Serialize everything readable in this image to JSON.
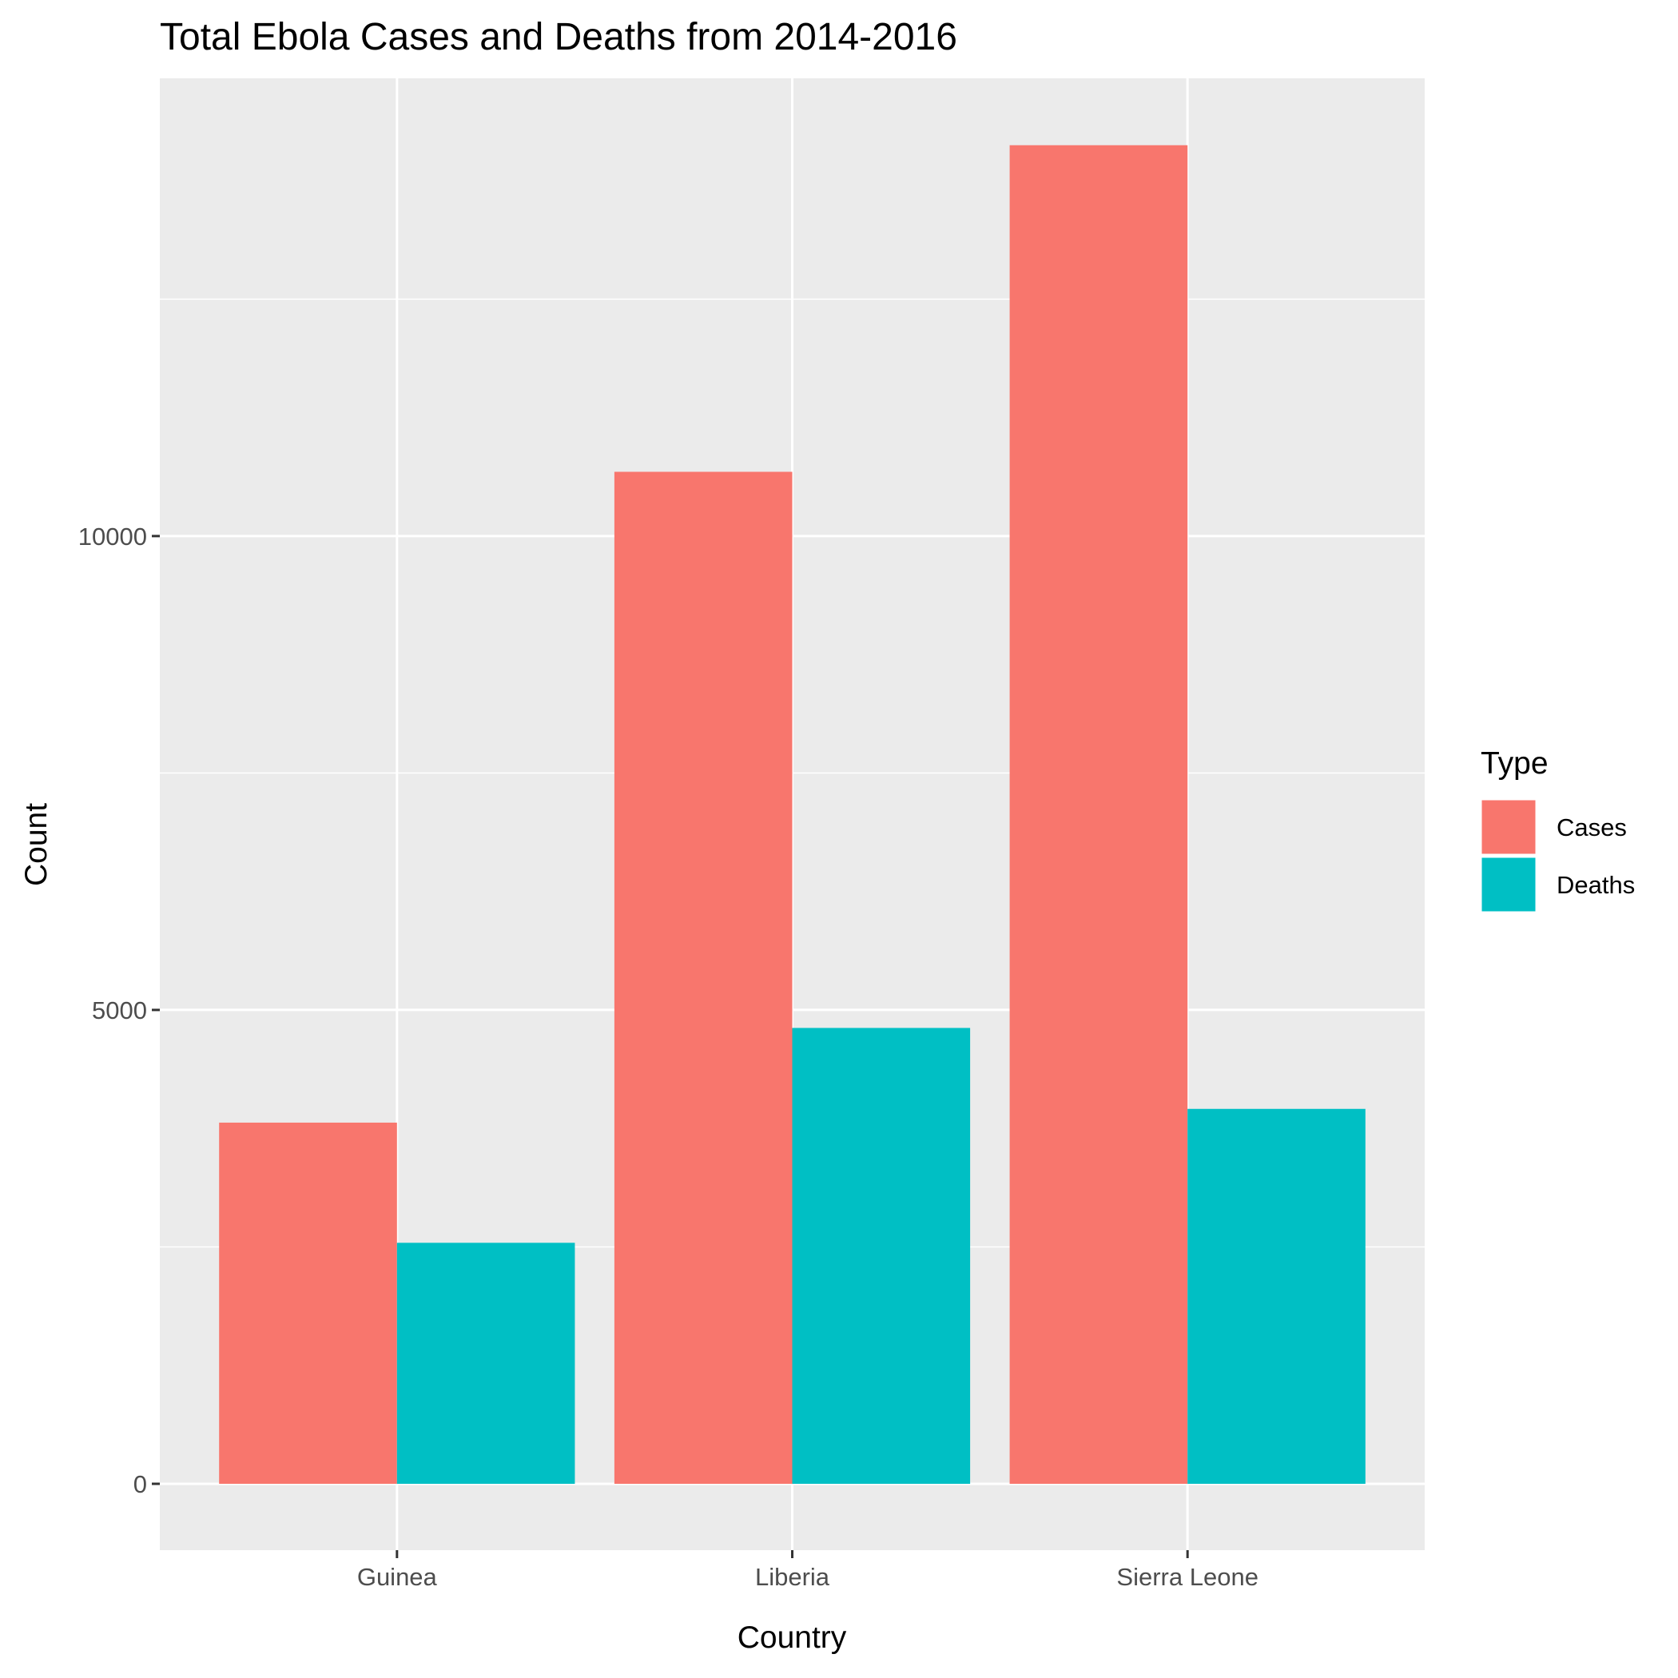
{
  "chart_data": {
    "type": "bar",
    "title": "Total Ebola Cases and Deaths from 2014-2016",
    "xlabel": "Country",
    "ylabel": "Count",
    "categories": [
      "Guinea",
      "Liberia",
      "Sierra Leone"
    ],
    "series": [
      {
        "name": "Cases",
        "color": "#F8766D",
        "values": [
          3811,
          10678,
          14124
        ]
      },
      {
        "name": "Deaths",
        "color": "#00BFC4",
        "values": [
          2543,
          4810,
          3956
        ]
      }
    ],
    "ylim": [
      -700,
      14830
    ],
    "yticks": [
      0,
      5000,
      10000
    ],
    "ytick_labels": [
      "0",
      "5000",
      "10000"
    ],
    "grid": true,
    "legend": {
      "title": "Type",
      "position": "right"
    },
    "panel_background": "#EBEBEB",
    "grid_color": "#FFFFFF"
  }
}
